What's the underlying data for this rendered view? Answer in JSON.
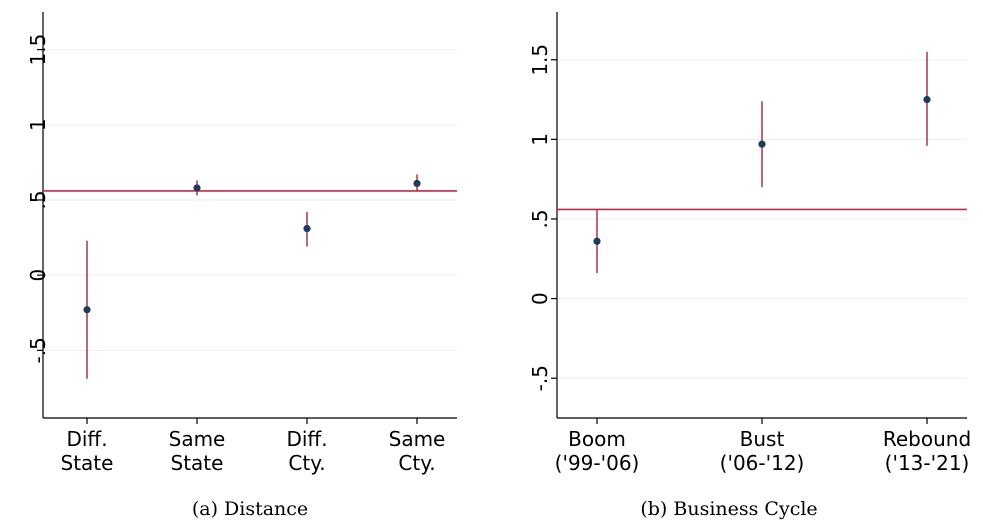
{
  "chart_data": [
    {
      "type": "scatter",
      "caption": "(a) Distance",
      "categories": [
        [
          "Diff.",
          "State"
        ],
        [
          "Same",
          "State"
        ],
        [
          "Diff.",
          "Cty."
        ],
        [
          "Same",
          "Cty."
        ]
      ],
      "y_ticks": [
        {
          "value": -0.5,
          "label": "-.5"
        },
        {
          "value": 0,
          "label": "0"
        },
        {
          "value": 0.5,
          "label": ".5"
        },
        {
          "value": 1,
          "label": "1"
        },
        {
          "value": 1.5,
          "label": "1.5"
        }
      ],
      "ylim": [
        -0.95,
        1.75
      ],
      "points": [
        {
          "estimate": -0.23,
          "lower": -0.69,
          "upper": 0.23
        },
        {
          "estimate": 0.58,
          "lower": 0.53,
          "upper": 0.63
        },
        {
          "estimate": 0.31,
          "lower": 0.19,
          "upper": 0.42
        },
        {
          "estimate": 0.61,
          "lower": 0.56,
          "upper": 0.67
        }
      ],
      "reference_line": 0.56,
      "grid": true,
      "colors": {
        "point": "#1f3a5f",
        "interval": "#a0283c",
        "reference": "#c0284a",
        "grid": "#ebeef2"
      }
    },
    {
      "type": "scatter",
      "caption": "(b) Business Cycle",
      "categories": [
        [
          "Boom",
          "('99-'06)"
        ],
        [
          "Bust",
          "('06-'12)"
        ],
        [
          "Rebound",
          "('13-'21)"
        ]
      ],
      "y_ticks": [
        {
          "value": -0.5,
          "label": "-.5"
        },
        {
          "value": 0,
          "label": "0"
        },
        {
          "value": 0.5,
          "label": ".5"
        },
        {
          "value": 1,
          "label": "1"
        },
        {
          "value": 1.5,
          "label": "1.5"
        }
      ],
      "ylim": [
        -0.75,
        1.8
      ],
      "points": [
        {
          "estimate": 0.36,
          "lower": 0.16,
          "upper": 0.56
        },
        {
          "estimate": 0.97,
          "lower": 0.7,
          "upper": 1.24
        },
        {
          "estimate": 1.25,
          "lower": 0.96,
          "upper": 1.55
        }
      ],
      "reference_line": 0.56,
      "grid": true,
      "colors": {
        "point": "#1f3a5f",
        "interval": "#a0283c",
        "reference": "#c0284a",
        "grid": "#ebeef2"
      }
    }
  ]
}
